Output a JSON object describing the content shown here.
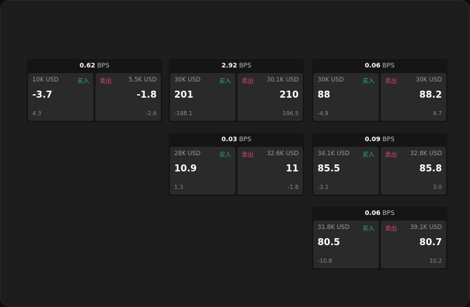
{
  "unit": "BPS",
  "buy_label": "买入",
  "sell_label": "卖出",
  "cards": [
    {
      "spread": "0.62",
      "buy": {
        "size": "10K USD",
        "price": "-3.7",
        "change": "4.3"
      },
      "sell": {
        "size": "5.5K USD",
        "price": "-1.8",
        "change": "-2.6"
      }
    },
    {
      "spread": "2.92",
      "buy": {
        "size": "30K USD",
        "price": "201",
        "change": "-188.1"
      },
      "sell": {
        "size": "30.1K USD",
        "price": "210",
        "change": "196.5"
      }
    },
    {
      "spread": "0.06",
      "buy": {
        "size": "30K USD",
        "price": "88",
        "change": "-4.9"
      },
      "sell": {
        "size": "30K USD",
        "price": "88.2",
        "change": "4.7"
      }
    },
    {
      "spread": "0.03",
      "buy": {
        "size": "28K USD",
        "price": "10.9",
        "change": "1.3"
      },
      "sell": {
        "size": "32.6K USD",
        "price": "11",
        "change": "-1.8"
      }
    },
    {
      "spread": "0.09",
      "buy": {
        "size": "34.1K USD",
        "price": "85.5",
        "change": "-3.1"
      },
      "sell": {
        "size": "32.8K USD",
        "price": "85.8",
        "change": "3.0"
      }
    },
    {
      "spread": "0.06",
      "buy": {
        "size": "31.8K USD",
        "price": "80.5",
        "change": "-10.8"
      },
      "sell": {
        "size": "39.1K USD",
        "price": "80.7",
        "change": "10.2"
      }
    }
  ]
}
